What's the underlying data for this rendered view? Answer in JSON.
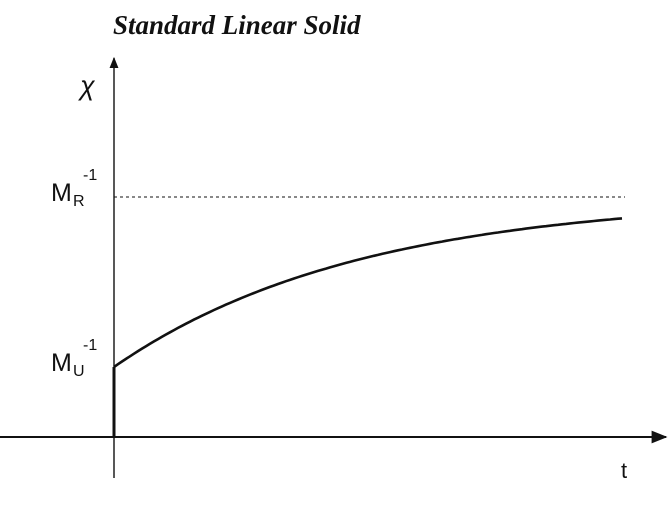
{
  "title": "Standard Linear Solid",
  "axes": {
    "y_label": "χ",
    "x_label": "t"
  },
  "labels": {
    "relaxed": {
      "base": "M",
      "sub": "R",
      "sup": "-1"
    },
    "unrelaxed": {
      "base": "M",
      "sub": "U",
      "sup": "-1"
    }
  },
  "curve": {
    "type": "exponential-approach",
    "description_levels": {
      "start": "unrelaxed",
      "asymptote": "relaxed"
    },
    "asymptote_style": "dashed"
  },
  "colors": {
    "ink": "#111111",
    "background": "#ffffff"
  }
}
